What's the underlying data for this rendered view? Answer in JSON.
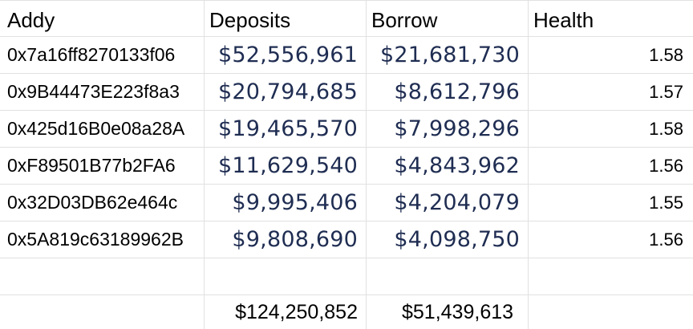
{
  "columns": {
    "addy": "Addy",
    "deposits": "Deposits",
    "borrow": "Borrow",
    "health": "Health"
  },
  "rows": [
    {
      "addy": "0x7a16ff8270133f06",
      "deposits": "$52,556,961",
      "borrow": "$21,681,730",
      "health": "1.58"
    },
    {
      "addy": "0x9B44473E223f8a3",
      "deposits": "$20,794,685",
      "borrow": "$8,612,796",
      "health": "1.57"
    },
    {
      "addy": "0x425d16B0e08a28A",
      "deposits": "$19,465,570",
      "borrow": "$7,998,296",
      "health": "1.58"
    },
    {
      "addy": "0xF89501B77b2FA6",
      "deposits": "$11,629,540",
      "borrow": "$4,843,962",
      "health": "1.56"
    },
    {
      "addy": "0x32D03DB62e464c",
      "deposits": "$9,995,406",
      "borrow": "$4,204,079",
      "health": "1.55"
    },
    {
      "addy": "0x5A819c63189962B",
      "deposits": "$9,808,690",
      "borrow": "$4,098,750",
      "health": "1.56"
    }
  ],
  "totals": {
    "deposits": "$124,250,852",
    "borrow": "$51,439,613"
  },
  "colors": {
    "money_text": "#1f2d52",
    "grid_line": "#e1e1e1"
  }
}
